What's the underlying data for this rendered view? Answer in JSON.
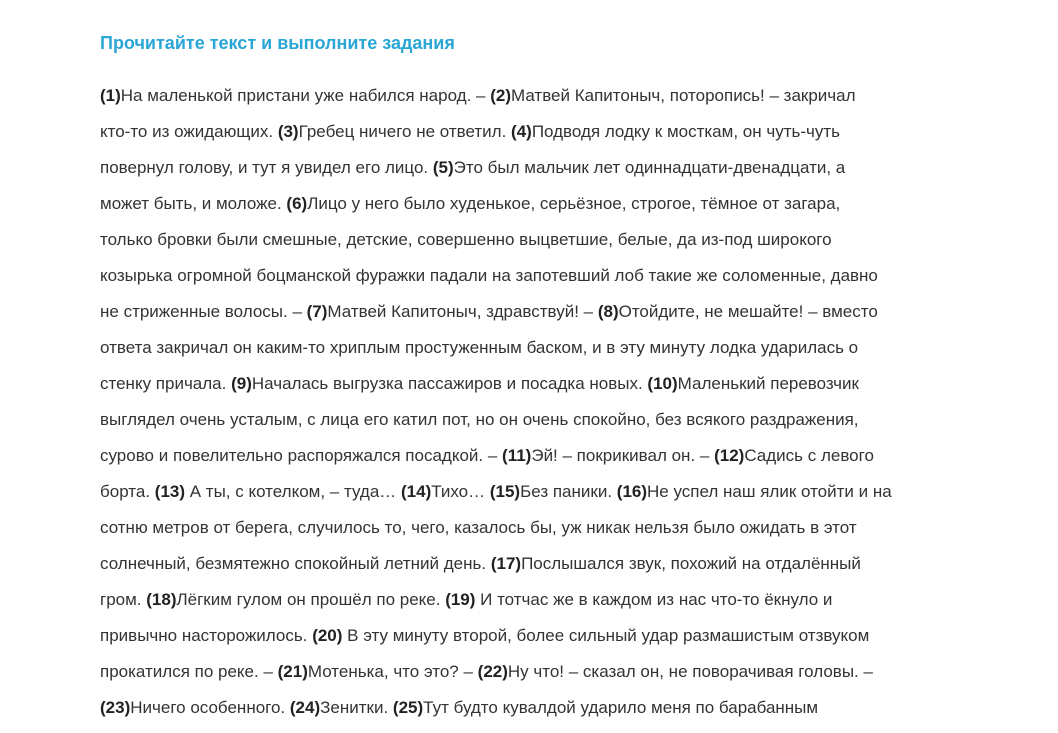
{
  "title": "Прочитайте текст и выполните задания",
  "colors": {
    "title": "#2aa6d6",
    "text": "#333333"
  },
  "lines": [
    [
      [
        "(1)",
        "На маленькой пристани уже набился народ. – "
      ],
      [
        "(2)",
        "Матвей Капитоныч, поторопись! – закричал"
      ]
    ],
    [
      [
        "",
        "кто-то из ожидающих. "
      ],
      [
        "(3)",
        "Гребец ничего не ответил. "
      ],
      [
        "(4)",
        "Подводя лодку к мосткам, он чуть-чуть"
      ]
    ],
    [
      [
        "",
        "повернул голову, и тут я увидел его лицо. "
      ],
      [
        "(5)",
        "Это был мальчик лет одиннадцати-двенадцати, а"
      ]
    ],
    [
      [
        "",
        "может быть, и моложе. "
      ],
      [
        "(6)",
        "Лицо у него было худенькое, серьёзное, строгое, тёмное от загара,"
      ]
    ],
    [
      [
        "",
        "только бровки были смешные, детские, совершенно выцветшие, белые, да из-под широкого"
      ]
    ],
    [
      [
        "",
        "козырька огромной боцманской фуражки падали на запотевший лоб такие же соломенные, давно"
      ]
    ],
    [
      [
        "",
        "не стриженные волосы. – "
      ],
      [
        "(7)",
        "Матвей Капитоныч, здравствуй! – "
      ],
      [
        "(8)",
        "Отойдите, не мешайте! – вместо"
      ]
    ],
    [
      [
        "",
        "ответа закричал он каким-то хриплым простуженным баском, и в эту минуту лодка ударилась о"
      ]
    ],
    [
      [
        "",
        "стенку причала. "
      ],
      [
        "(9)",
        "Началась выгрузка пассажиров и посадка новых. "
      ],
      [
        "(10)",
        "Маленький перевозчик"
      ]
    ],
    [
      [
        "",
        "выглядел очень усталым, с лица его катил пот, но он очень спокойно, без всякого раздражения,"
      ]
    ],
    [
      [
        "",
        "сурово и повелительно распоряжался посадкой. – "
      ],
      [
        "(11)",
        "Эй! – покрикивал он. – "
      ],
      [
        "(12)",
        "Садись с левого"
      ]
    ],
    [
      [
        "",
        "борта. "
      ],
      [
        "(13)",
        " А ты, с котелком, – туда… "
      ],
      [
        "(14)",
        "Тихо… "
      ],
      [
        "(15)",
        "Без паники. "
      ],
      [
        "(16)",
        "Не успел наш ялик отойти и на"
      ]
    ],
    [
      [
        "",
        "сотню метров от берега, случилось то, чего, казалось бы, уж никак нельзя было ожидать в этот"
      ]
    ],
    [
      [
        "",
        "солнечный, безмятежно спокойный летний день. "
      ],
      [
        "(17)",
        "Послышался звук, похожий на отдалённый"
      ]
    ],
    [
      [
        "",
        "гром. "
      ],
      [
        "(18)",
        "Лёгким гулом он прошёл по реке. "
      ],
      [
        "(19)",
        " И тотчас же в каждом из нас что-то ёкнуло и"
      ]
    ],
    [
      [
        "",
        "привычно насторожилось. "
      ],
      [
        "(20)",
        " В эту минуту второй, более сильный удар размашистым отзвуком"
      ]
    ],
    [
      [
        "",
        "прокатился по реке. – "
      ],
      [
        "(21)",
        "Мотенька, что это? – "
      ],
      [
        "(22)",
        "Ну что! – сказал он, не поворачивая головы. –"
      ]
    ],
    [
      [
        "(23)",
        "Ничего особенного. "
      ],
      [
        "(24)",
        "Зенитки. "
      ],
      [
        "(25)",
        "Тут будто кувалдой ударило меня по барабанным"
      ]
    ]
  ]
}
